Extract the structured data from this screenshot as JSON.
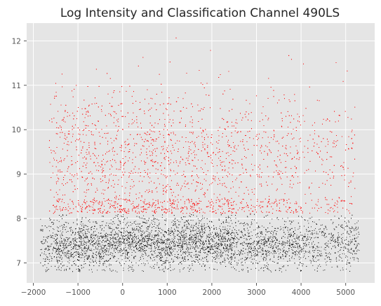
{
  "chart_data": {
    "type": "scatter",
    "title": "Log Intensity and Classification Channel 490LS",
    "xlabel": "",
    "ylabel": "",
    "xlim": [
      -2150,
      5650
    ],
    "ylim": [
      6.55,
      12.4
    ],
    "x_ticks": [
      -2000,
      -1000,
      0,
      1000,
      2000,
      3000,
      4000,
      5000
    ],
    "x_tick_labels": [
      "−2000",
      "−1000",
      "0",
      "1000",
      "2000",
      "3000",
      "4000",
      "5000"
    ],
    "y_ticks": [
      7,
      8,
      9,
      10,
      11,
      12
    ],
    "y_tick_labels": [
      "7",
      "8",
      "9",
      "10",
      "11",
      "12"
    ],
    "grid": true,
    "background": "#e5e5e5",
    "threshold": 8.1,
    "series": [
      {
        "color": "#ff0000",
        "description_points": [
          [
            -1600,
            8.3
          ],
          [
            -1200,
            10.3
          ],
          [
            -800,
            11.2
          ],
          [
            -400,
            9.6
          ],
          [
            0,
            10.1
          ],
          [
            500,
            9.3
          ],
          [
            1000,
            10.5
          ],
          [
            1500,
            9.7
          ],
          [
            2000,
            9.0
          ],
          [
            2500,
            10.0
          ],
          [
            3000,
            9.4
          ],
          [
            3500,
            9.1
          ],
          [
            4000,
            9.5
          ],
          [
            4500,
            10.2
          ],
          [
            5000,
            9.0
          ]
        ]
      },
      {
        "color": "#000000",
        "description_points": [
          [
            -1800,
            7.3
          ],
          [
            -1400,
            7.8
          ],
          [
            -1000,
            7.5
          ],
          [
            -500,
            7.4
          ],
          [
            0,
            7.6
          ],
          [
            500,
            7.4
          ],
          [
            1000,
            7.2
          ],
          [
            1500,
            7.5
          ],
          [
            2000,
            7.7
          ],
          [
            2500,
            7.5
          ],
          [
            3000,
            7.4
          ],
          [
            3500,
            7.3
          ],
          [
            4000,
            7.6
          ],
          [
            4500,
            7.5
          ],
          [
            5000,
            7.4
          ]
        ]
      }
    ]
  }
}
